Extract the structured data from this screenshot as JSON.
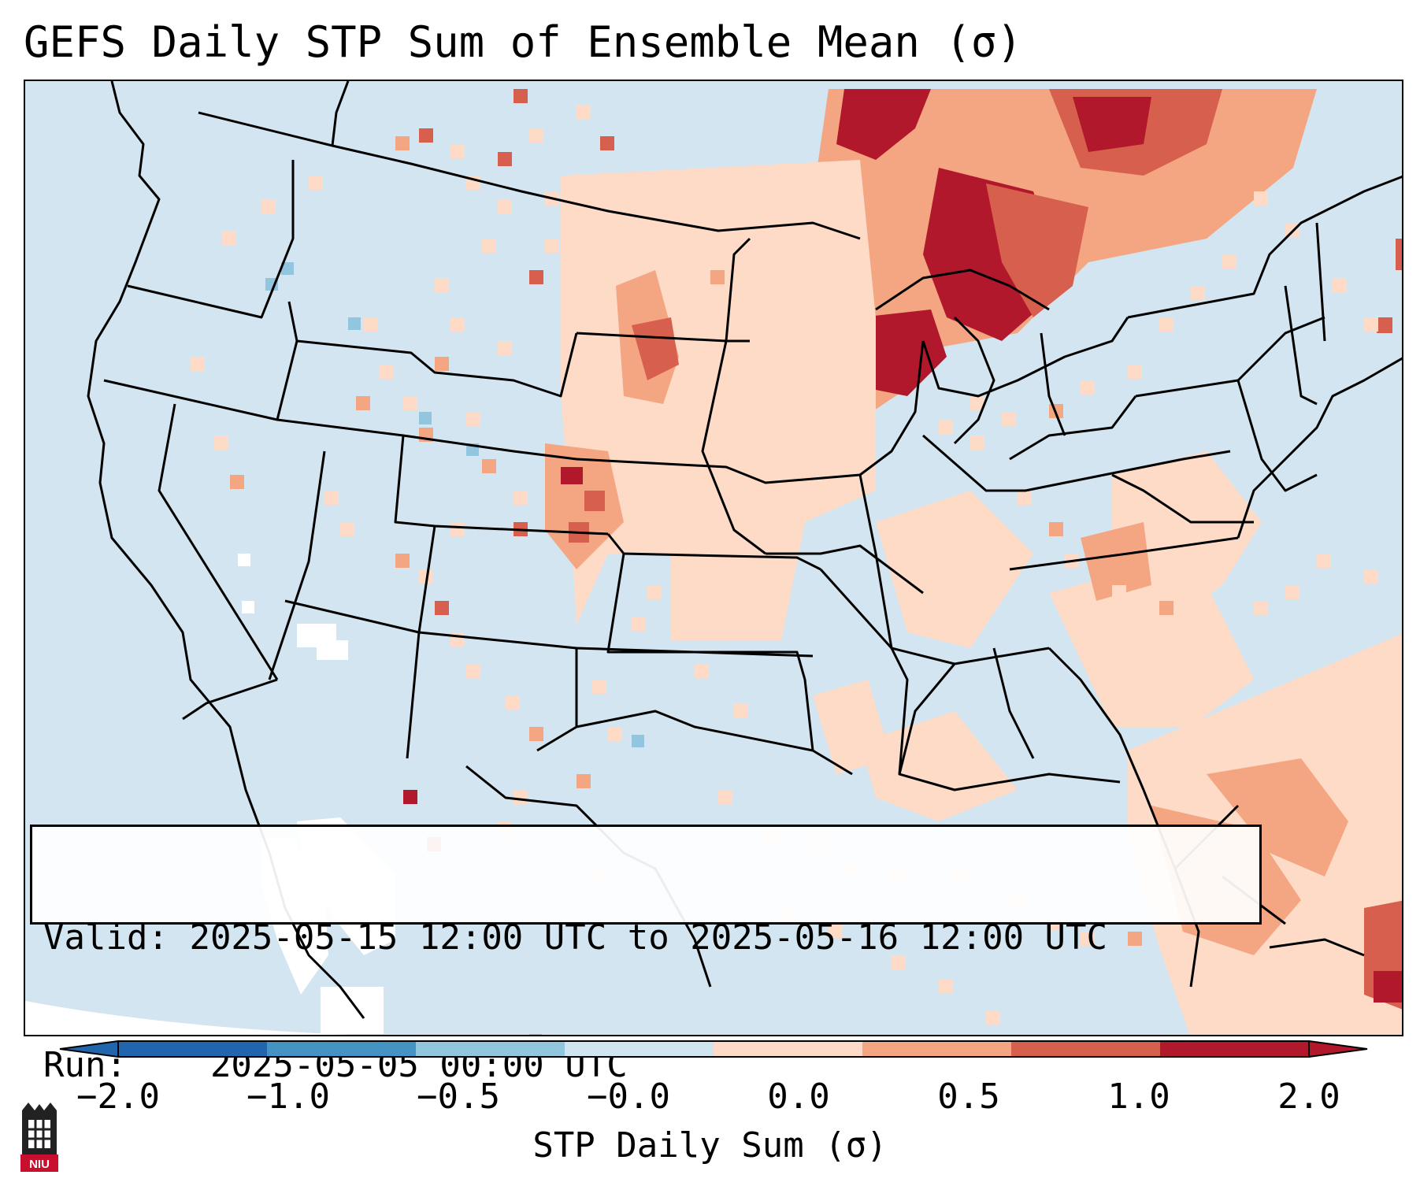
{
  "title": "GEFS Daily STP Sum of Ensemble Mean (σ)",
  "map": {
    "region": "CONUS",
    "projection": "Lambert Conformal",
    "ocean_color": "#d2e5f0",
    "border_color": "#000000"
  },
  "info": {
    "valid_label": "Valid:",
    "valid_value": "2025-05-15 12:00 UTC to 2025-05-16 12:00 UTC",
    "run_label": "Run:",
    "run_value": "2025-05-05 00:00 UTC"
  },
  "colorbar": {
    "label": "STP Daily Sum (σ)",
    "ticks": [
      "−2.0",
      "−1.0",
      "−0.5",
      "−0.0",
      "0.0",
      "0.5",
      "1.0",
      "2.0"
    ],
    "colors": [
      "#2166ac",
      "#4393c3",
      "#92c5de",
      "#d1e5f0",
      "#fddbc7",
      "#f4a582",
      "#d6604d",
      "#b2182b"
    ],
    "extend": "both"
  },
  "logo": {
    "text": "NIU",
    "icon": "niu-logo-icon"
  }
}
